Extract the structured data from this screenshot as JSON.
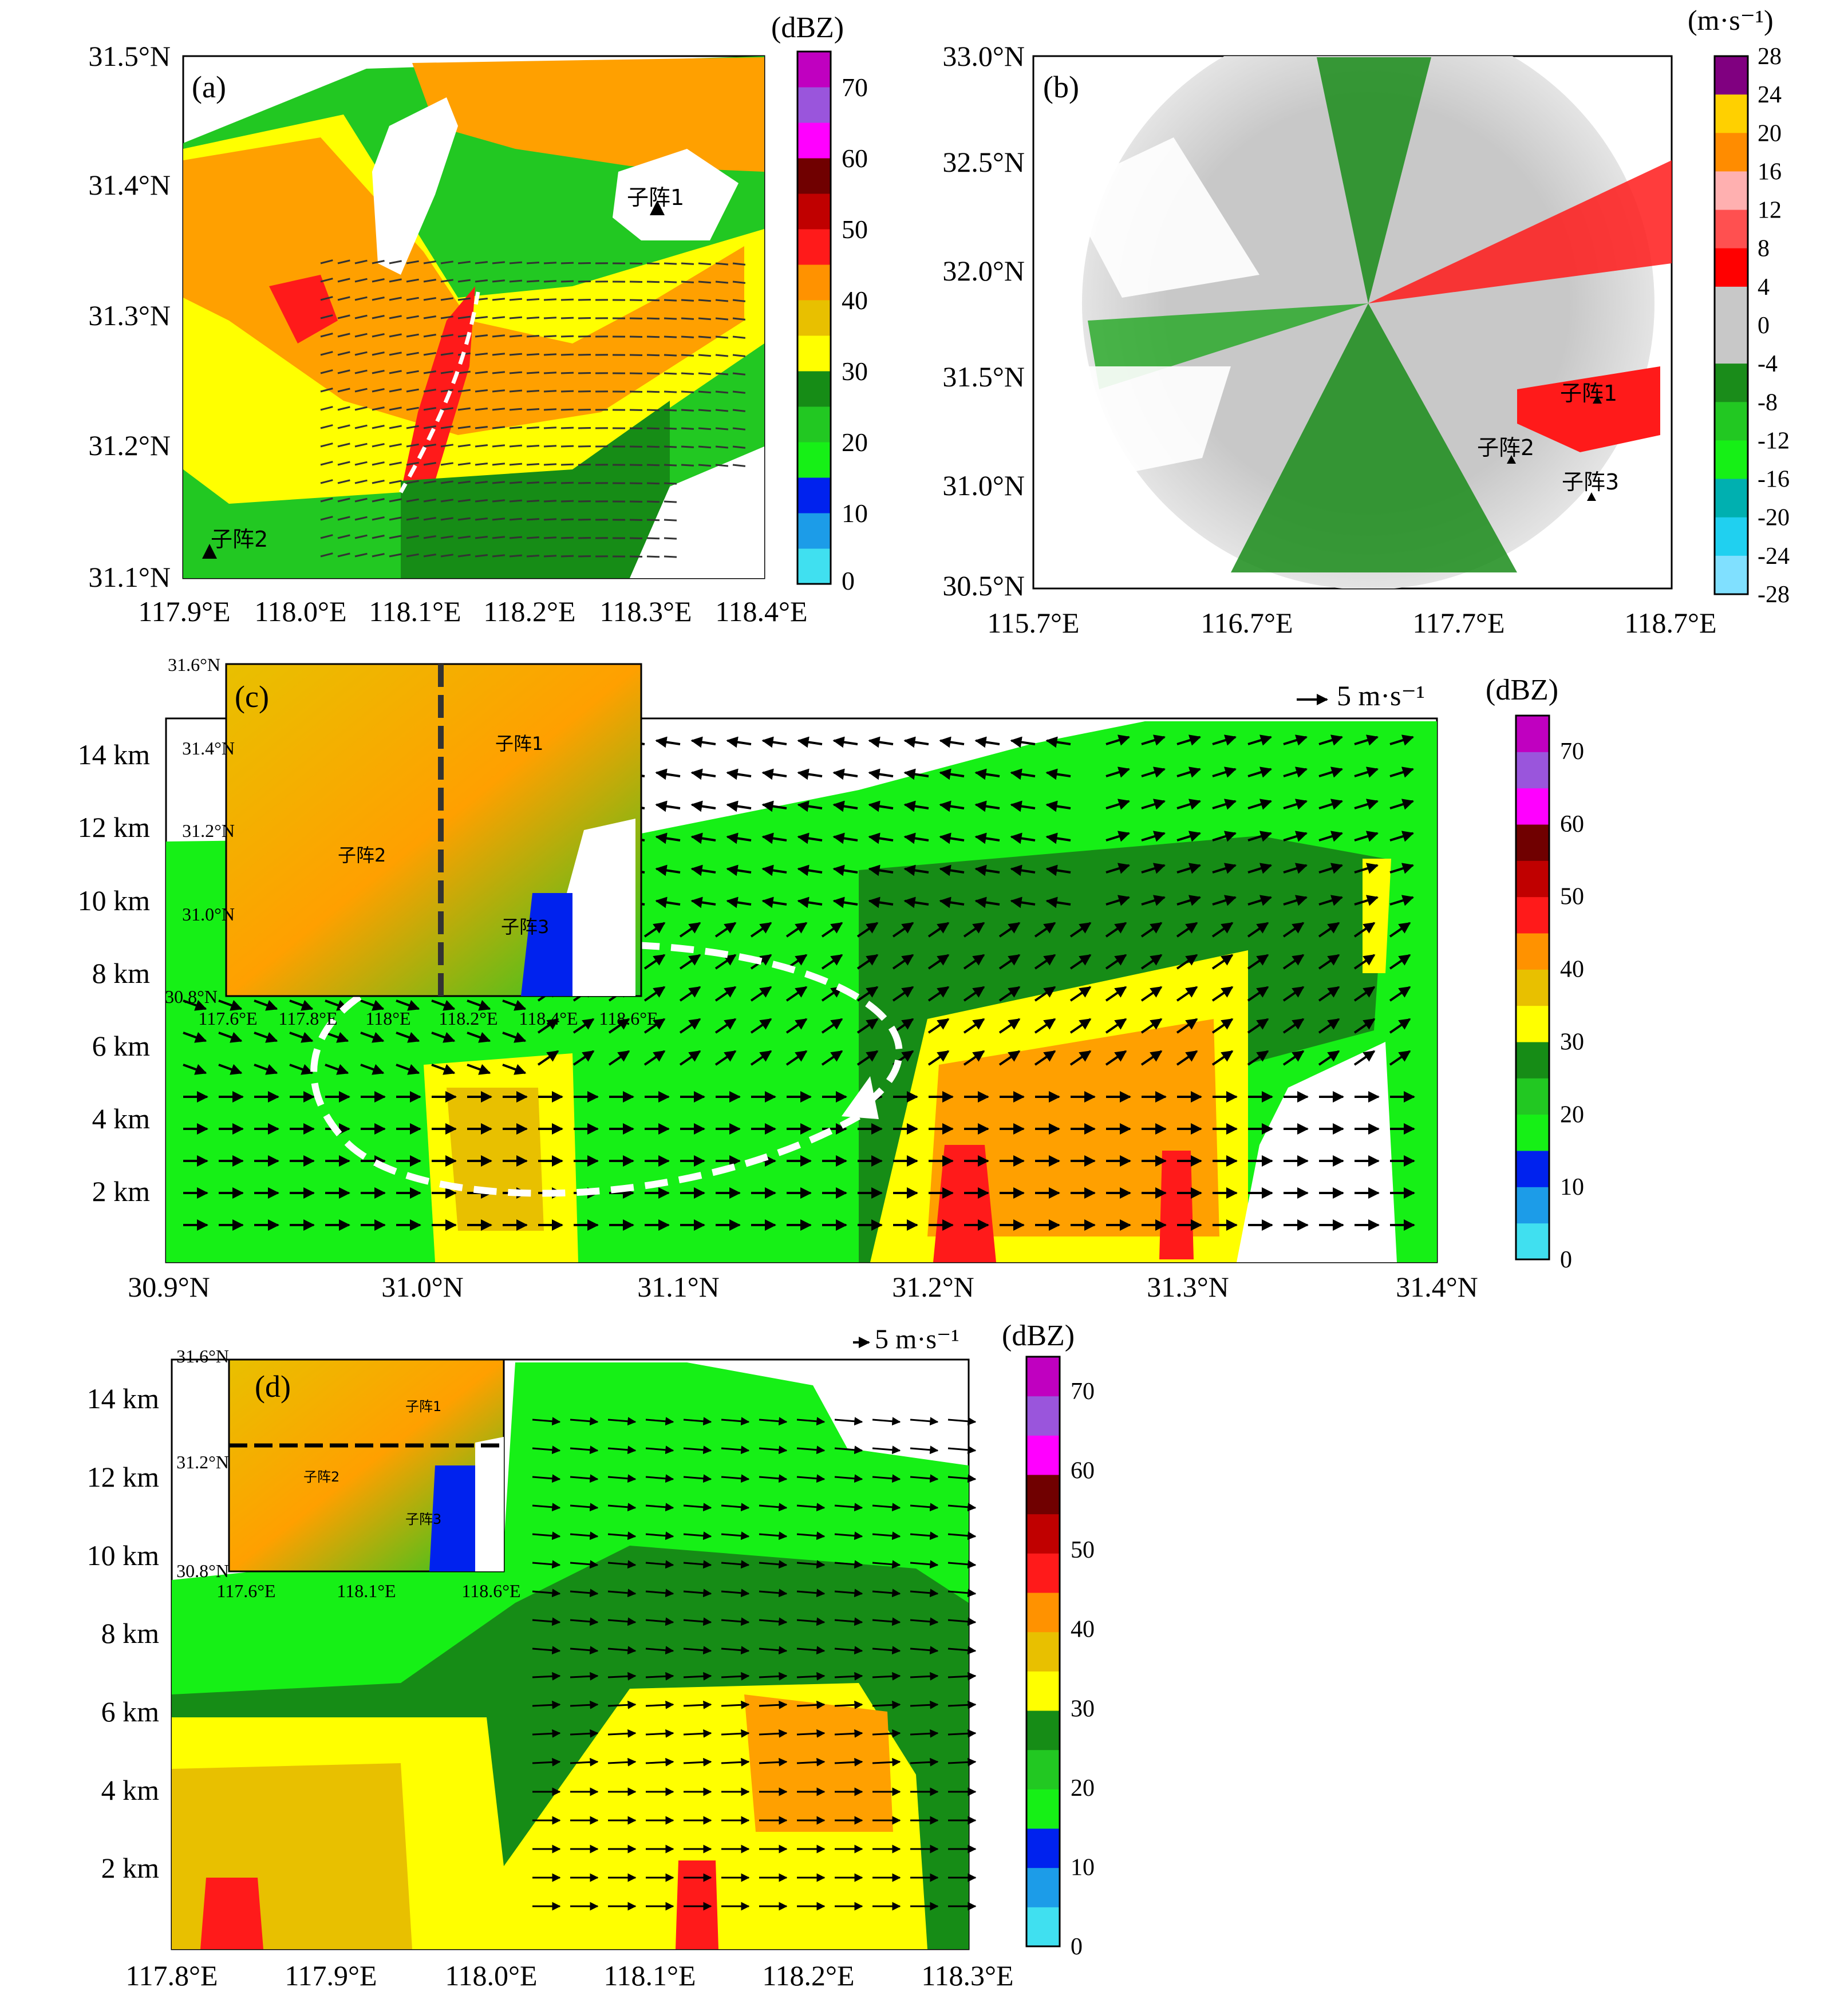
{
  "panel_a": {
    "label": "(a)",
    "colorbar_unit": "(dBZ)",
    "colorbar_ticks": [
      "0",
      "10",
      "20",
      "30",
      "40",
      "50",
      "60",
      "70"
    ],
    "colorbar_colors": [
      "#40e0f0",
      "#1c9ce8",
      "#0022ee",
      "#16f016",
      "#22c822",
      "#168c16",
      "#ffff00",
      "#e8c000",
      "#ff9200",
      "#ff1a1a",
      "#c00000",
      "#700000",
      "#ff00ff",
      "#9a55dc",
      "#c000c0"
    ],
    "xticks": [
      "117.9°E",
      "118.0°E",
      "118.1°E",
      "118.2°E",
      "118.3°E",
      "118.4°E"
    ],
    "yticks": [
      "31.5°N",
      "31.4°N",
      "31.3°N",
      "31.2°N",
      "31.1°N"
    ],
    "markers": [
      "子阵1",
      "子阵2"
    ]
  },
  "panel_b": {
    "label": "(b)",
    "colorbar_unit": "(m·s⁻¹)",
    "colorbar_ticks": [
      "28",
      "24",
      "20",
      "16",
      "12",
      "8",
      "4",
      "0",
      "-4",
      "-8",
      "-12",
      "-16",
      "-20",
      "-24",
      "-28"
    ],
    "colorbar_colors": [
      "#800080",
      "#ffd000",
      "#ff8c00",
      "#ffb0b0",
      "#ff5050",
      "#ff0000",
      "#c8c8c8",
      "#c8c8c8",
      "#1a8c1a",
      "#22c822",
      "#16f016",
      "#00b0b0",
      "#20d0f0",
      "#80e0ff"
    ],
    "xticks": [
      "115.7°E",
      "116.7°E",
      "117.7°E",
      "118.7°E"
    ],
    "yticks": [
      "33.0°N",
      "32.5°N",
      "32.0°N",
      "31.5°N",
      "31.0°N",
      "30.5°N"
    ],
    "markers": [
      "子阵1",
      "子阵2",
      "子阵3"
    ]
  },
  "panel_c": {
    "label": "(c)",
    "vector_scale": "5 m·s⁻¹",
    "colorbar_unit": "(dBZ)",
    "colorbar_ticks": [
      "0",
      "10",
      "20",
      "30",
      "40",
      "50",
      "60",
      "70"
    ],
    "xticks": [
      "30.9°N",
      "31.0°N",
      "31.1°N",
      "31.2°N",
      "31.3°N",
      "31.4°N"
    ],
    "yticks": [
      "14 km",
      "12 km",
      "10 km",
      "8 km",
      "6 km",
      "4 km",
      "2 km"
    ],
    "inset": {
      "yticks": [
        "31.6°N",
        "31.4°N",
        "31.2°N",
        "31.0°N",
        "30.8°N"
      ],
      "xticks": [
        "117.6°E",
        "117.8°E",
        "118°E",
        "118.2°E",
        "118.4°E",
        "118.6°E"
      ],
      "markers": [
        "子阵1",
        "子阵2",
        "子阵3"
      ]
    }
  },
  "panel_d": {
    "label": "(d)",
    "vector_scale": "5 m·s⁻¹",
    "colorbar_unit": "(dBZ)",
    "colorbar_ticks": [
      "0",
      "10",
      "20",
      "30",
      "40",
      "50",
      "60",
      "70"
    ],
    "xticks": [
      "117.8°E",
      "117.9°E",
      "118.0°E",
      "118.1°E",
      "118.2°E",
      "118.3°E"
    ],
    "yticks": [
      "14 km",
      "12 km",
      "10 km",
      "8 km",
      "6 km",
      "4 km",
      "2 km"
    ],
    "inset": {
      "yticks": [
        "31.6°N",
        "31.2°N",
        "30.8°N"
      ],
      "xticks": [
        "117.6°E",
        "118.1°E",
        "118.6°E"
      ],
      "markers": [
        "子阵1",
        "子阵2",
        "子阵3"
      ]
    }
  }
}
